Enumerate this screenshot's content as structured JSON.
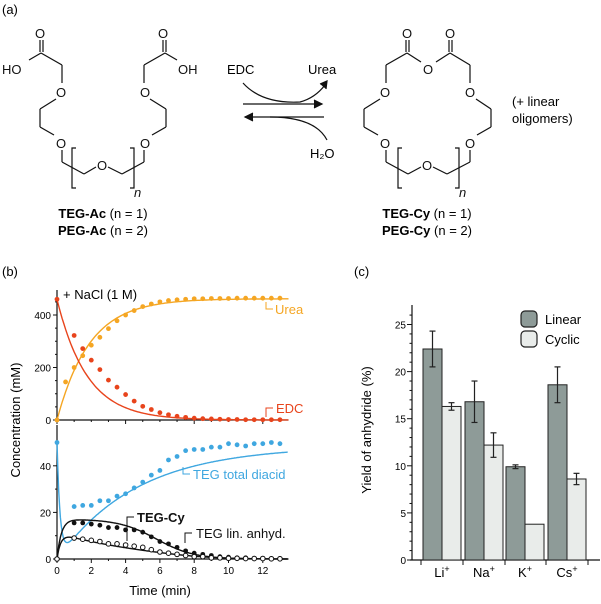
{
  "panel_a": {
    "label": "(a)",
    "reagent_top": "EDC",
    "product_top": "Urea",
    "reagent_bottom": "H₂O",
    "note_line1": "(+ linear",
    "note_line2": "oligomers)",
    "left_compound": {
      "atoms": {
        "ho": "HO",
        "oh": "OH",
        "o": "O",
        "n": "n"
      },
      "name1_bold": "TEG-Ac",
      "name1_rest": " (n = 1)",
      "name2_bold": "PEG-Ac",
      "name2_rest": " (n = 2)"
    },
    "right_compound": {
      "atoms": {
        "o": "O",
        "n": "n"
      },
      "name1_bold": "TEG-Cy",
      "name1_rest": " (n = 1)",
      "name2_bold": "PEG-Cy",
      "name2_rest": " (n = 2)"
    }
  },
  "chart_data": [
    {
      "panel": "(b) top",
      "type": "scatter",
      "title": "",
      "annotation": "+ NaCl (1 M)",
      "xlabel": "Time (min)",
      "ylabel": "Concentration (mM)",
      "xlim": [
        0,
        13.5
      ],
      "ylim": [
        0,
        500
      ],
      "yticks": [
        0,
        200,
        400
      ],
      "series": [
        {
          "name": "Urea",
          "color": "#f5a623",
          "x": [
            0,
            0.5,
            1,
            1.5,
            2,
            2.5,
            3,
            3.5,
            4,
            4.5,
            5,
            5.5,
            6,
            6.5,
            7,
            7.5,
            8,
            8.5,
            9,
            9.5,
            10,
            10.5,
            11,
            11.5,
            12,
            12.5,
            13
          ],
          "points": [
            0,
            145,
            200,
            245,
            285,
            315,
            348,
            378,
            400,
            417,
            432,
            442,
            450,
            455,
            458,
            460,
            462,
            462,
            463,
            463,
            463,
            464,
            464,
            464,
            464,
            464,
            464
          ],
          "fit": "1-exp"
        },
        {
          "name": "EDC",
          "color": "#e8441c",
          "x": [
            0,
            1,
            1.5,
            2,
            2.5,
            3,
            3.5,
            4,
            4.5,
            5,
            5.5,
            6,
            6.5,
            7,
            7.5,
            8,
            8.5,
            9,
            9.5,
            10,
            10.5,
            11,
            11.5,
            12,
            12.5,
            13
          ],
          "points": [
            460,
            322,
            272,
            228,
            192,
            152,
            125,
            97,
            72,
            52,
            40,
            28,
            20,
            14,
            10,
            7,
            5,
            4,
            3,
            2,
            2,
            1,
            1,
            1,
            1,
            1
          ],
          "fit": "exp"
        }
      ]
    },
    {
      "panel": "(b) bottom",
      "type": "scatter",
      "xlabel": "Time (min)",
      "xlim": [
        0,
        13.5
      ],
      "xticks": [
        0,
        2,
        4,
        6,
        8,
        10,
        12
      ],
      "ylim": [
        0,
        55
      ],
      "yticks": [
        0,
        20,
        40
      ],
      "series": [
        {
          "name": "TEG total diacid",
          "color": "#3fa7e0",
          "marker": "filled",
          "x": [
            0,
            1,
            1.5,
            2,
            2.5,
            3,
            3.5,
            4,
            4.5,
            5,
            5.5,
            6,
            6.5,
            7,
            7.5,
            8,
            8.5,
            9,
            9.5,
            10,
            10.5,
            11,
            11.5,
            12,
            12.5,
            13
          ],
          "points": [
            50,
            22.5,
            23,
            23,
            25,
            25,
            27,
            28,
            30.5,
            33,
            36,
            38,
            42.5,
            44,
            46.5,
            47,
            47,
            48,
            48,
            49.5,
            49,
            48.5,
            49.5,
            49.5,
            50,
            49.5
          ]
        },
        {
          "name": "TEG-Cy",
          "color": "#111111",
          "marker": "filled",
          "x": [
            0,
            1,
            1.5,
            2,
            2.5,
            3,
            3.5,
            4,
            4.5,
            5,
            5.5,
            6,
            6.5,
            7,
            7.5,
            8,
            8.5,
            9,
            9.5,
            10,
            10.5,
            11,
            11.5,
            12,
            12.5,
            13
          ],
          "points": [
            0,
            15.5,
            15.5,
            15,
            14.5,
            13.5,
            13.5,
            12.5,
            12.5,
            11.5,
            9.5,
            7.5,
            6.5,
            5,
            3.5,
            2.5,
            2,
            1.5,
            1,
            0.8,
            0.5,
            0.5,
            0.3,
            0.3,
            0.2,
            0.2
          ]
        },
        {
          "name": "TEG lin. anhyd.",
          "color": "#111111",
          "marker": "open",
          "x": [
            0,
            1,
            1.5,
            2,
            2.5,
            3,
            3.5,
            4,
            4.5,
            5,
            5.5,
            6,
            6.5,
            7,
            7.5,
            8,
            8.5,
            9,
            9.5,
            10,
            10.5,
            11,
            11.5,
            12,
            12.5,
            13
          ],
          "points": [
            0,
            9,
            8.5,
            8,
            7.5,
            6.5,
            6.5,
            6,
            5.5,
            5,
            4,
            3,
            2.5,
            2,
            1.5,
            1,
            1,
            0.5,
            0.5,
            0.3,
            0.3,
            0.2,
            0.2,
            0.2,
            0.1,
            0.1
          ]
        }
      ]
    },
    {
      "panel": "(c)",
      "type": "bar",
      "title": "",
      "xlabel": "",
      "ylabel": "Yield of anhydride (%)",
      "ylim": [
        0,
        27
      ],
      "yticks": [
        0,
        5,
        10,
        15,
        20,
        25
      ],
      "categories": [
        "Li⁺",
        "Na⁺",
        "K⁺",
        "Cs⁺"
      ],
      "category_base": [
        "Li",
        "Na",
        "K",
        "Cs"
      ],
      "category_sup": "+",
      "legend_position": "top-right",
      "series": [
        {
          "name": "Linear",
          "color": "#8e9b98",
          "values": [
            22.4,
            16.8,
            9.9,
            18.6
          ],
          "errors": [
            1.9,
            2.2,
            0.2,
            1.9
          ]
        },
        {
          "name": "Cyclic",
          "color": "#e9ecea",
          "values": [
            16.3,
            12.2,
            3.8,
            8.6
          ],
          "errors": [
            0.4,
            1.3,
            0.0,
            0.6
          ]
        }
      ]
    }
  ]
}
